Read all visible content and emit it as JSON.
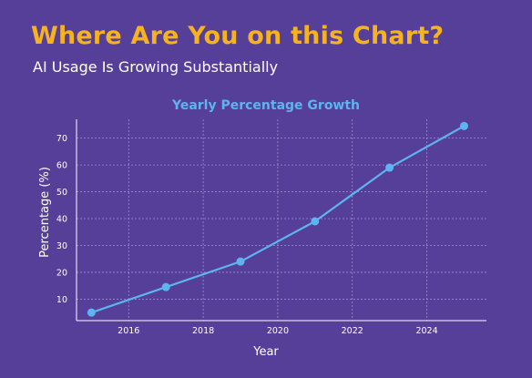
{
  "page": {
    "headline": "Where Are You on this Chart?",
    "subheadline": "AI Usage Is Growing Substantially"
  },
  "colors": {
    "background": "#553f98",
    "headline": "#f7b21f",
    "line": "#5db4f0",
    "chart_title": "#5db4f0",
    "axis": "#ffffff",
    "grid": "#9c8fd0"
  },
  "chart_data": {
    "type": "line",
    "title": "Yearly Percentage Growth",
    "xlabel": "Year",
    "ylabel": "Percentage (%)",
    "xlim": [
      2014.6,
      2025.6
    ],
    "ylim": [
      2,
      77
    ],
    "xticks": [
      2016,
      2018,
      2020,
      2022,
      2024
    ],
    "yticks": [
      10,
      20,
      30,
      40,
      50,
      60,
      70
    ],
    "grid": true,
    "grid_style": "dotted",
    "x": [
      2015,
      2017,
      2019,
      2021,
      2023,
      2025
    ],
    "y": [
      5,
      14.5,
      24,
      39,
      59,
      74.5
    ],
    "markers": true
  }
}
